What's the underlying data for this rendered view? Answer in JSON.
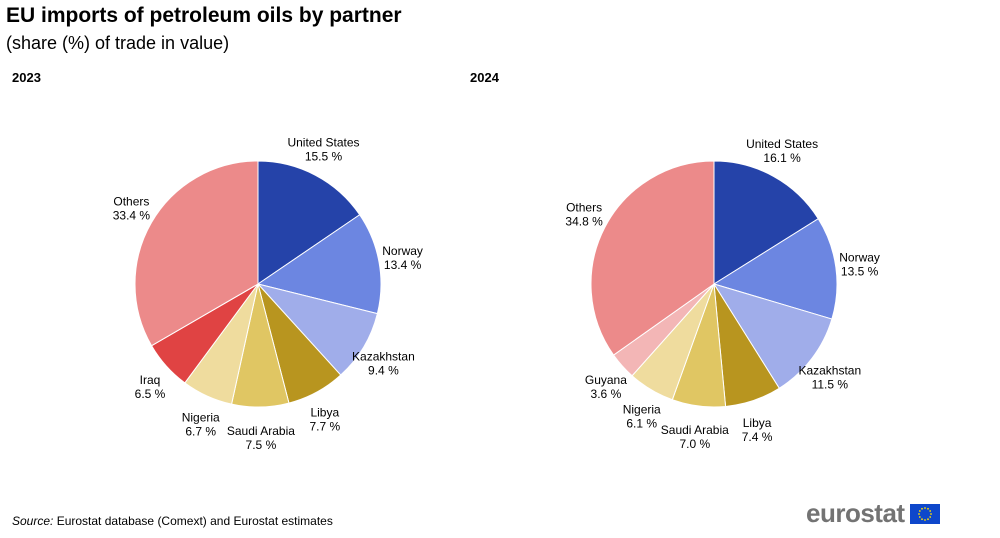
{
  "title": "EU imports of petroleum oils by partner",
  "subtitle": "(share (%) of trade in value)",
  "source_label": "Source:",
  "source_text": "Eurostat database (Comext) and Eurostat estimates",
  "logo_text": "eurostat",
  "chart_data": [
    {
      "type": "pie",
      "title": "2023",
      "slices": [
        {
          "label": "United States",
          "value": 15.5,
          "value_text": "15.5 %",
          "color": "#2543a9"
        },
        {
          "label": "Norway",
          "value": 13.4,
          "value_text": "13.4 %",
          "color": "#6c86e1"
        },
        {
          "label": "Kazakhstan",
          "value": 9.4,
          "value_text": "9.4 %",
          "color": "#a0adea"
        },
        {
          "label": "Libya",
          "value": 7.7,
          "value_text": "7.7 %",
          "color": "#b8951f"
        },
        {
          "label": "Saudi Arabia",
          "value": 7.5,
          "value_text": "7.5 %",
          "color": "#e0c663"
        },
        {
          "label": "Nigeria",
          "value": 6.7,
          "value_text": "6.7 %",
          "color": "#efdc9e"
        },
        {
          "label": "Iraq",
          "value": 6.5,
          "value_text": "6.5 %",
          "color": "#e04343"
        },
        {
          "label": "Others",
          "value": 33.4,
          "value_text": "33.4 %",
          "color": "#ec8a8a"
        }
      ]
    },
    {
      "type": "pie",
      "title": "2024",
      "slices": [
        {
          "label": "United States",
          "value": 16.1,
          "value_text": "16.1 %",
          "color": "#2543a9"
        },
        {
          "label": "Norway",
          "value": 13.5,
          "value_text": "13.5 %",
          "color": "#6c86e1"
        },
        {
          "label": "Kazakhstan",
          "value": 11.5,
          "value_text": "11.5 %",
          "color": "#a0adea"
        },
        {
          "label": "Libya",
          "value": 7.4,
          "value_text": "7.4 %",
          "color": "#b8951f"
        },
        {
          "label": "Saudi Arabia",
          "value": 7.0,
          "value_text": "7.0 %",
          "color": "#e0c663"
        },
        {
          "label": "Nigeria",
          "value": 6.1,
          "value_text": "6.1 %",
          "color": "#efdc9e"
        },
        {
          "label": "Guyana",
          "value": 3.6,
          "value_text": "3.6 %",
          "color": "#f3b6b6"
        },
        {
          "label": "Others",
          "value": 34.8,
          "value_text": "34.8 %",
          "color": "#ec8a8a"
        }
      ]
    }
  ]
}
